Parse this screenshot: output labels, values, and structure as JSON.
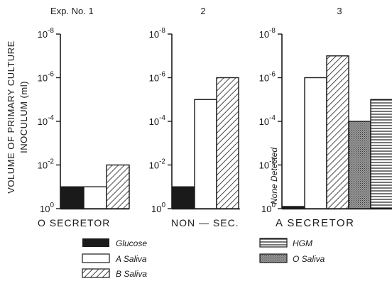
{
  "chart_data": [
    {
      "type": "bar",
      "panel_label": "Exp. No. 1",
      "group_label": "O SECRETOR",
      "ylabel_line1": "VOLUME OF PRIMARY CULTURE",
      "ylabel_line2": "INOCULUM (ml)",
      "y_scale": "log, inverted (smaller volume plotted higher)",
      "y_ticks": [
        "10^0",
        "10^-2",
        "10^-4",
        "10^-6",
        "10^-8"
      ],
      "ylim_ml": [
        1,
        1e-08
      ],
      "categories": [
        "Glucose",
        "A Saliva",
        "B Saliva"
      ],
      "values_ml": [
        0.1,
        0.1,
        0.01
      ]
    },
    {
      "type": "bar",
      "panel_label": "2",
      "group_label": "NON — SEC.",
      "y_scale": "log, inverted (smaller volume plotted higher)",
      "y_ticks": [
        "10^0",
        "10^-2",
        "10^-4",
        "10^-6",
        "10^-8"
      ],
      "ylim_ml": [
        1,
        1e-08
      ],
      "categories": [
        "Glucose",
        "A Saliva",
        "B Saliva"
      ],
      "values_ml": [
        0.1,
        1e-05,
        1e-06
      ]
    },
    {
      "type": "bar",
      "panel_label": "3",
      "group_label": "A SECRETOR",
      "y_scale": "log, inverted (smaller volume plotted higher)",
      "y_ticks": [
        "10^0",
        "10^-2",
        "10^-4",
        "10^-6",
        "10^-8"
      ],
      "ylim_ml": [
        1,
        1e-08
      ],
      "categories": [
        "Glucose",
        "A Saliva",
        "B Saliva",
        "O Saliva",
        "HGM"
      ],
      "values_ml": [
        null,
        1e-06,
        1e-07,
        0.0001,
        1e-05
      ],
      "annotation": "None Detected"
    }
  ],
  "legend": [
    {
      "key": "glucose",
      "label": "Glucose",
      "pattern": "solid"
    },
    {
      "key": "a_saliva",
      "label": "A Saliva",
      "pattern": "open"
    },
    {
      "key": "b_saliva",
      "label": "B Saliva",
      "pattern": "diagonal-hatch"
    },
    {
      "key": "hgm",
      "label": "HGM",
      "pattern": "horizontal-lines"
    },
    {
      "key": "o_saliva",
      "label": "O Saliva",
      "pattern": "stipple"
    }
  ],
  "colors": {
    "ink": "#1a1a1a",
    "paper": "#ffffff",
    "stipple": "#8c8c8c"
  }
}
